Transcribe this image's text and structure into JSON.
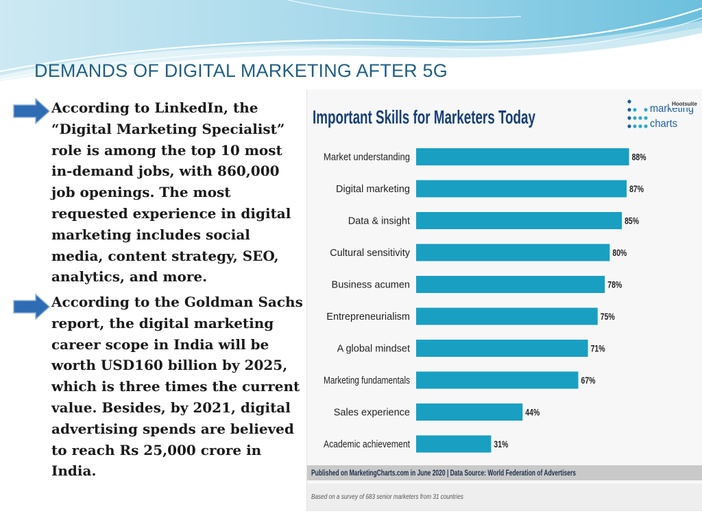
{
  "slide": {
    "title": "DEMANDS OF DIGITAL MARKETING AFTER 5G",
    "bullets": [
      {
        "text": "According to LinkedIn, the “Digital Marketing Specialist” role is among the top 10 most in-demand jobs, with 860,000 job openings. The most requested experience in digital marketing includes social media, content strategy, SEO, analytics, and more."
      },
      {
        "text": "According to the Goldman Sachs report, the digital marketing career scope in India will be worth USD160 billion by 2025, which is three times the current value. Besides, by 2021, digital advertising spends are believed to reach Rs 25,000 crore in India."
      }
    ],
    "colors": {
      "title": "#1f5f86",
      "arrow": "#2e6db4",
      "wave": "#7fc6e0"
    }
  },
  "chart_data": {
    "type": "bar",
    "orientation": "horizontal",
    "title": "Important Skills for Marketers Today",
    "logo_text": [
      "marketing",
      "charts"
    ],
    "logo_badge": "Hootsuite",
    "categories": [
      "Market understanding",
      "Digital marketing",
      "Data & insight",
      "Cultural sensitivity",
      "Business acumen",
      "Entrepreneurialism",
      "A global mindset",
      "Marketing fundamentals",
      "Sales experience",
      "Academic achievement"
    ],
    "values": [
      88,
      87,
      85,
      80,
      78,
      75,
      71,
      67,
      44,
      31
    ],
    "value_labels": [
      "88%",
      "87%",
      "85%",
      "80%",
      "78%",
      "75%",
      "71%",
      "67%",
      "44%",
      "31%"
    ],
    "xlim": [
      0,
      100
    ],
    "grid": false,
    "bar_color": "#199fc2",
    "source": "Published on MarketingCharts.com in June 2020 | Data Source: World Federation of Advertisers",
    "note": "Based on a survey of 683 senior marketers from 31 countries"
  }
}
